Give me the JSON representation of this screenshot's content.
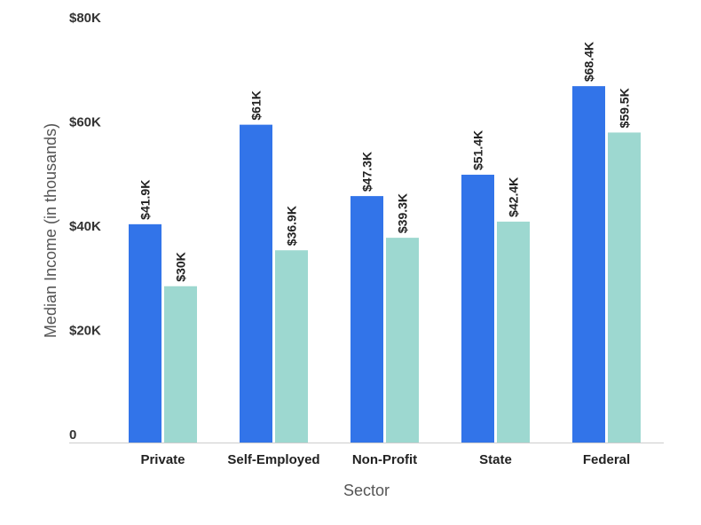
{
  "chart_data": {
    "type": "bar",
    "categories": [
      "Private",
      "Self-Employed",
      "Non-Profit",
      "State",
      "Federal"
    ],
    "series": [
      {
        "values": [
          41.9,
          61,
          47.3,
          51.4,
          68.4
        ],
        "labels": [
          "$41.9K",
          "$61K",
          "$47.3K",
          "$51.4K",
          "$68.4K"
        ],
        "color": "#3274e9"
      },
      {
        "values": [
          30,
          36.9,
          39.3,
          42.4,
          59.5
        ],
        "labels": [
          "$30K",
          "$36.9K",
          "$39.3K",
          "$42.4K",
          "$59.5K"
        ],
        "color": "#9dd8d0"
      }
    ],
    "title": "",
    "xlabel": "Sector",
    "ylabel": "Median Income (in thousands)",
    "ylim": [
      0,
      80
    ],
    "yticks": [
      0,
      20,
      40,
      60,
      80
    ],
    "ytick_labels": [
      "0",
      "$20K",
      "$40K",
      "$60K",
      "$80K"
    ],
    "grid": false,
    "legend": "none"
  }
}
